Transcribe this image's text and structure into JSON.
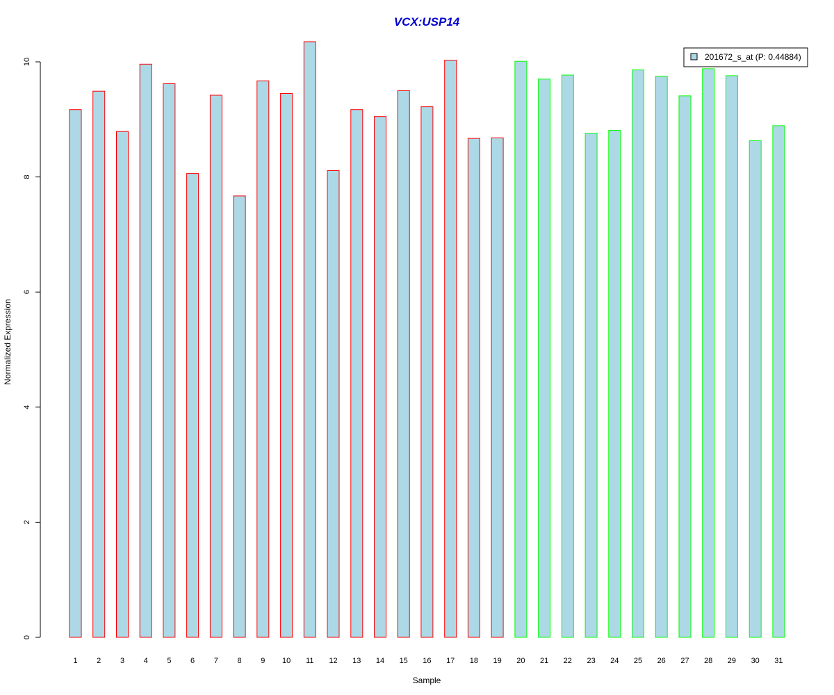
{
  "chart_data": {
    "type": "bar",
    "title": "VCX:USP14",
    "xlabel": "Sample",
    "ylabel": "Normalized Expression",
    "ylim": [
      0,
      10.5
    ],
    "yticks": [
      "0",
      "2",
      "4",
      "6",
      "8",
      "10"
    ],
    "grid": false,
    "legend": {
      "position": "top-right",
      "label": "201672_s_at (P: 0.44884)"
    },
    "categories": [
      "1",
      "2",
      "3",
      "4",
      "5",
      "6",
      "7",
      "8",
      "9",
      "10",
      "11",
      "12",
      "13",
      "14",
      "15",
      "16",
      "17",
      "18",
      "19",
      "20",
      "21",
      "22",
      "23",
      "24",
      "25",
      "26",
      "27",
      "28",
      "29",
      "30",
      "31"
    ],
    "series": [
      {
        "name": "201672_s_at (P: 0.44884)",
        "values": [
          9.17,
          9.49,
          8.79,
          9.96,
          9.62,
          8.06,
          9.42,
          7.67,
          9.67,
          9.45,
          10.35,
          8.11,
          9.17,
          9.05,
          9.5,
          9.22,
          10.03,
          8.67,
          8.68,
          10.01,
          9.7,
          9.77,
          8.76,
          8.81,
          9.86,
          9.75,
          9.41,
          9.88,
          9.76,
          8.63,
          8.89
        ],
        "group_index": [
          0,
          0,
          0,
          0,
          0,
          0,
          0,
          0,
          0,
          0,
          0,
          0,
          0,
          0,
          0,
          0,
          0,
          0,
          0,
          1,
          1,
          1,
          1,
          1,
          1,
          1,
          1,
          1,
          1,
          1,
          1
        ]
      }
    ],
    "colors": {
      "bar_fill": "#add8e6",
      "group_borders": [
        "#ff0000",
        "#00ff00"
      ],
      "title": "#0000cc",
      "axis": "#000000"
    }
  }
}
